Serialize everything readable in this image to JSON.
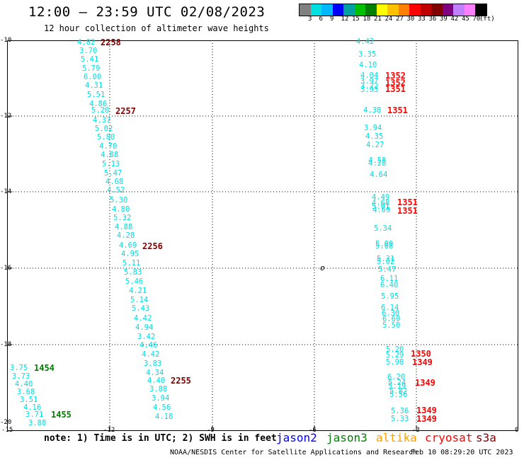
{
  "header": {
    "title": "12:00 – 23:59 UTC 02/08/2023",
    "subtitle": "12 hour collection of altimeter wave heights"
  },
  "color_scale": {
    "colors": [
      "#808080",
      "#00e0e0",
      "#00b8ff",
      "#0000ff",
      "#00a0a0",
      "#00c000",
      "#008000",
      "#ffff00",
      "#ffc000",
      "#ff8000",
      "#ff0000",
      "#c00000",
      "#800000",
      "#800080",
      "#c080ff",
      "#ff80ff",
      "#000000"
    ],
    "labels": [
      "3",
      "6",
      "9",
      "12",
      "15",
      "18",
      "21",
      "24",
      "27",
      "30",
      "33",
      "36",
      "39",
      "42",
      "45",
      "70",
      "(ft)"
    ]
  },
  "map": {
    "y_ticks": [
      "-10",
      "-12",
      "-14",
      "-16",
      "-18",
      "-20"
    ],
    "x_ticks": [
      "-15",
      "-12",
      "-9",
      "-6",
      "-3",
      "0"
    ],
    "island_symbol": "o",
    "track_values": [
      "4.82",
      "3.70",
      "5.41",
      "5.79",
      "6.00",
      "4.31",
      "5.51",
      "4.86",
      "5.20",
      "4.37",
      "5.02",
      "5.80",
      "4.70",
      "4.88",
      "5.13",
      "5.47",
      "4.68",
      "4.52",
      "5.30",
      "4.80",
      "5.32",
      "4.88",
      "4.28",
      "4.69",
      "4.95",
      "5.11",
      "5.83",
      "5.46",
      "4.21",
      "5.14",
      "5.43",
      "4.42",
      "4.94",
      "3.42",
      "4.46",
      "4.42",
      "3.83",
      "4.34",
      "4.40",
      "3.88",
      "3.94",
      "4.56",
      "4.18",
      "3.75",
      "3.73",
      "4.40",
      "3.68",
      "3.51",
      "4.16",
      "3.71",
      "3.88",
      "4.42",
      "3.35",
      "4.10",
      "4.04",
      "3.97",
      "3.72",
      "3.93",
      "4.38",
      "3.94",
      "4.35",
      "4.27",
      "4.58",
      "4.28",
      "4.64",
      "4.49",
      "4.68",
      "5.01",
      "4.69",
      "5.34",
      "5.09",
      "5.08",
      "5.31",
      "5.02",
      "5.47",
      "6.11",
      "6.40",
      "5.95",
      "6.14",
      "6.30",
      "6.69",
      "5.50",
      "5.20",
      "5.29",
      "5.98",
      "6.20",
      "5.24",
      "5.19",
      "5.82",
      "5.56",
      "5.36",
      "5.33"
    ],
    "pass_labels": {
      "p2258": "2258",
      "p2257": "2257",
      "p2256": "2256",
      "p2255": "2255",
      "p1454": "1454",
      "p1455": "1455",
      "p1352a": "1352",
      "p1352b": "1352",
      "p1351a": "1351",
      "p1351b": "1351",
      "p1351c": "1351",
      "p1351d": "1351",
      "p1350": "1350",
      "p1349a": "1349",
      "p1349b": "1349",
      "p1349c": "1349",
      "p1349d": "1349"
    }
  },
  "footer": {
    "note": "note: 1) Time is in UTC; 2) SWH is in feet",
    "legend": [
      {
        "name": "jason2",
        "color": "#0000ff"
      },
      {
        "name": "jason3",
        "color": "#008000"
      },
      {
        "name": "altika",
        "color": "#ffa000"
      },
      {
        "name": "cryosat",
        "color": "#ff0000"
      },
      {
        "name": "s3a",
        "color": "#800000"
      }
    ],
    "credit": "NOAA/NESDIS Center for Satellite Applications and Research",
    "timestamp": "Feb 10 08:29:20 UTC 2023"
  }
}
